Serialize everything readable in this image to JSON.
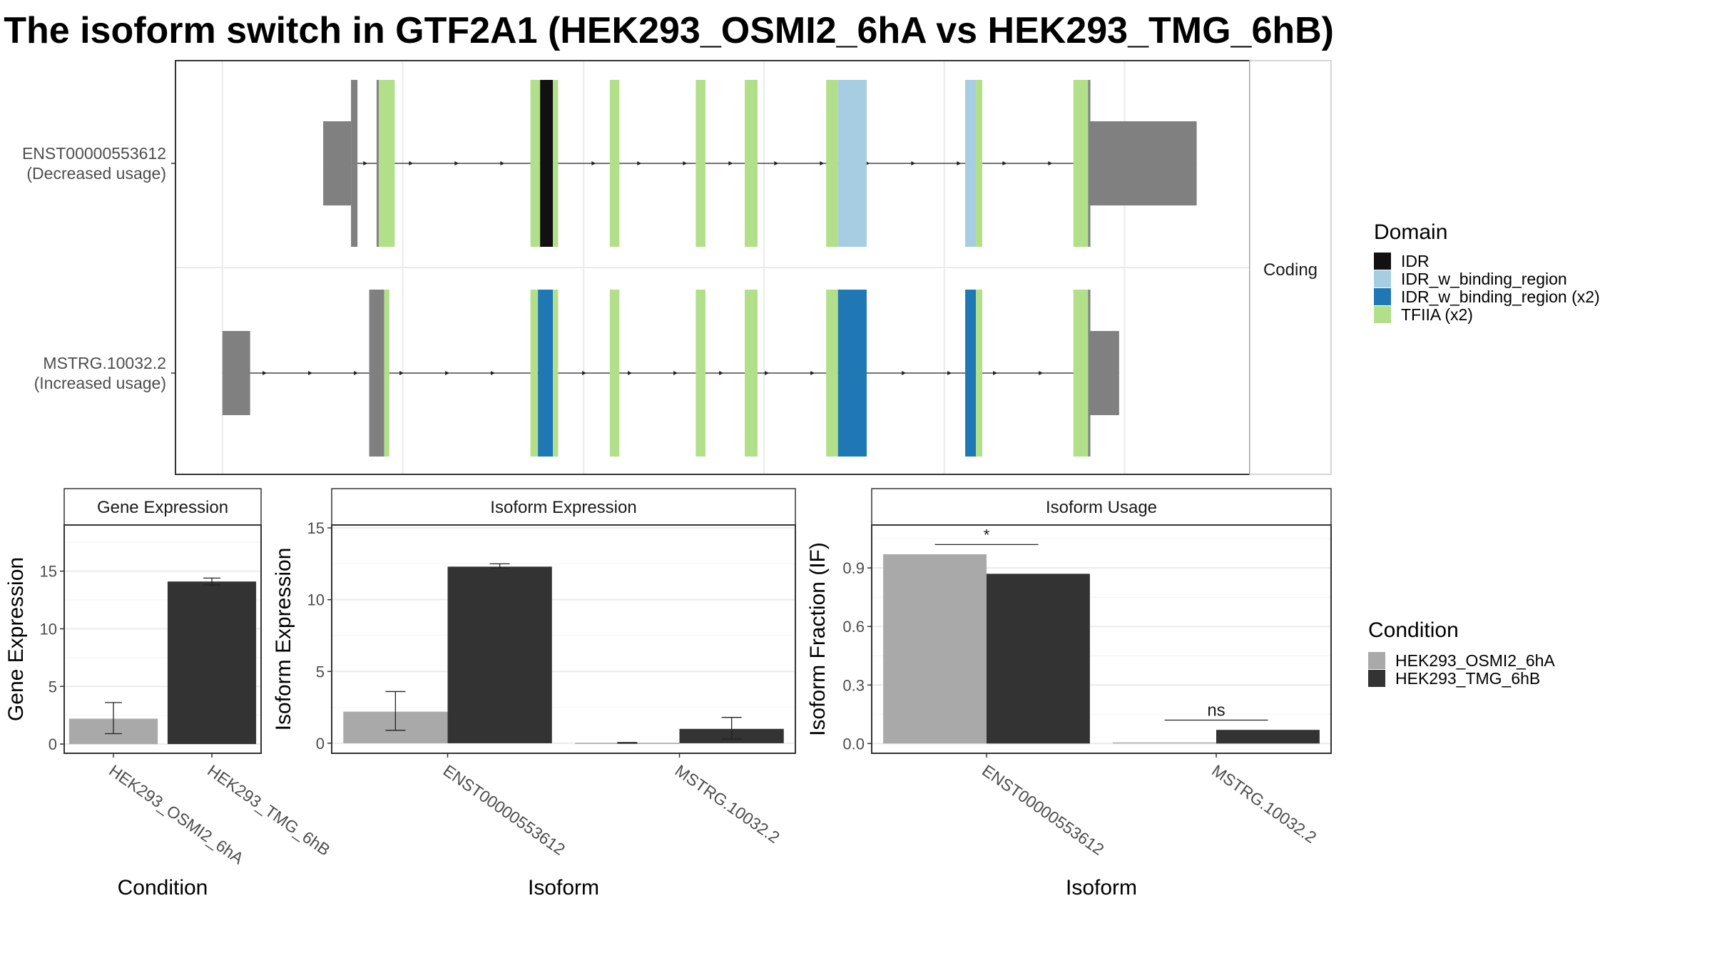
{
  "title": "The isoform switch in GTF2A1 (HEK293_OSMI2_6hA vs HEK293_TMG_6hB)",
  "colors": {
    "IDR": "#111111",
    "IDR_w_binding_region": "#a6cde2",
    "IDR_w_binding_region_x2": "#1f78b4",
    "TFIIA_x2": "#b2df8a",
    "utr": "#808080",
    "cond_a": "#a9a9a9",
    "cond_b": "#333333"
  },
  "chart_data": [
    {
      "type": "gene_structure",
      "facet_label": "Coding",
      "isoforms": [
        {
          "id": "ENST00000553612",
          "label_line1": "ENST00000553612",
          "label_line2": "(Decreased usage)",
          "utr5": [
            [
              0.1375,
              0.1634
            ],
            [
              0.1634,
              0.1694
            ]
          ],
          "utr3": [
            [
              0.8516,
              0.9506
            ]
          ],
          "segments": [
            {
              "start": 0.1872,
              "end": 0.1892,
              "domain": "utr"
            },
            {
              "start": 0.1892,
              "end": 0.2041,
              "domain": "TFIIA_x2"
            },
            {
              "start": 0.3304,
              "end": 0.3394,
              "domain": "TFIIA_x2"
            },
            {
              "start": 0.3394,
              "end": 0.3513,
              "domain": "IDR"
            },
            {
              "start": 0.3513,
              "end": 0.3562,
              "domain": "TFIIA_x2"
            },
            {
              "start": 0.4043,
              "end": 0.4132,
              "domain": "TFIIA_x2"
            },
            {
              "start": 0.4843,
              "end": 0.4933,
              "domain": "TFIIA_x2"
            },
            {
              "start": 0.5299,
              "end": 0.5418,
              "domain": "TFIIA_x2"
            },
            {
              "start": 0.6057,
              "end": 0.6167,
              "domain": "TFIIA_x2"
            },
            {
              "start": 0.6167,
              "end": 0.6434,
              "domain": "IDR_w_binding_region"
            },
            {
              "start": 0.7351,
              "end": 0.7451,
              "domain": "IDR_w_binding_region"
            },
            {
              "start": 0.7451,
              "end": 0.751,
              "domain": "TFIIA_x2"
            },
            {
              "start": 0.8358,
              "end": 0.8496,
              "domain": "TFIIA_x2"
            },
            {
              "start": 0.8496,
              "end": 0.8516,
              "domain": "utr"
            }
          ]
        },
        {
          "id": "MSTRG.10032.2",
          "label_line1": "MSTRG.10032.2",
          "label_line2": "(Increased usage)",
          "utr5": [
            [
              0.0437,
              0.0695
            ],
            [
              0.1803,
              0.1922
            ],
            [
              0.1922,
              0.1942
            ]
          ],
          "utr3": [
            [
              0.8516,
              0.8784
            ]
          ],
          "segments": [
            {
              "start": 0.1942,
              "end": 0.1991,
              "domain": "TFIIA_x2"
            },
            {
              "start": 0.3304,
              "end": 0.3374,
              "domain": "TFIIA_x2"
            },
            {
              "start": 0.3374,
              "end": 0.3513,
              "domain": "IDR_w_binding_region_x2"
            },
            {
              "start": 0.3513,
              "end": 0.3562,
              "domain": "TFIIA_x2"
            },
            {
              "start": 0.4043,
              "end": 0.4132,
              "domain": "TFIIA_x2"
            },
            {
              "start": 0.4843,
              "end": 0.4933,
              "domain": "TFIIA_x2"
            },
            {
              "start": 0.5299,
              "end": 0.5418,
              "domain": "TFIIA_x2"
            },
            {
              "start": 0.6057,
              "end": 0.6167,
              "domain": "TFIIA_x2"
            },
            {
              "start": 0.6167,
              "end": 0.6434,
              "domain": "IDR_w_binding_region_x2"
            },
            {
              "start": 0.7351,
              "end": 0.7451,
              "domain": "IDR_w_binding_region_x2"
            },
            {
              "start": 0.7451,
              "end": 0.751,
              "domain": "TFIIA_x2"
            },
            {
              "start": 0.8358,
              "end": 0.8496,
              "domain": "TFIIA_x2"
            },
            {
              "start": 0.8496,
              "end": 0.8516,
              "domain": "utr"
            }
          ]
        }
      ]
    },
    {
      "type": "bar",
      "facet_label": "Gene Expression",
      "xlabel": "Condition",
      "ylabel": "Gene Expression",
      "ylim": [
        -0.8,
        19
      ],
      "yticks": [
        0,
        5,
        10,
        15
      ],
      "categories": [
        "HEK293_OSMI2_6hA",
        "HEK293_TMG_6hB"
      ],
      "values": [
        2.2,
        14.1
      ],
      "errors": [
        [
          0.9,
          3.6
        ],
        [
          13.8,
          14.4
        ]
      ]
    },
    {
      "type": "bar",
      "facet_label": "Isoform Expression",
      "xlabel": "Isoform",
      "ylabel": "Isoform Expression",
      "ylim": [
        -0.7,
        15.2
      ],
      "yticks": [
        0,
        5,
        10,
        15
      ],
      "categories": [
        "ENST00000553612",
        "MSTRG.10032.2"
      ],
      "series": [
        {
          "name": "HEK293_OSMI2_6hA",
          "values": [
            2.2,
            0.02
          ],
          "errors": [
            [
              0.9,
              3.6
            ],
            [
              0,
              0.05
            ]
          ]
        },
        {
          "name": "HEK293_TMG_6hB",
          "values": [
            12.3,
            1.0
          ],
          "errors": [
            [
              12.2,
              12.5
            ],
            [
              0.3,
              1.8
            ]
          ]
        }
      ]
    },
    {
      "type": "bar",
      "facet_label": "Isoform Usage",
      "xlabel": "Isoform",
      "ylabel": "Isoform Fraction (IF)",
      "ylim": [
        -0.05,
        1.12
      ],
      "yticks": [
        0.0,
        0.3,
        0.6,
        0.9
      ],
      "ytick_labels": [
        "0.0",
        "0.3",
        "0.6",
        "0.9"
      ],
      "categories": [
        "ENST00000553612",
        "MSTRG.10032.2"
      ],
      "series": [
        {
          "name": "HEK293_OSMI2_6hA",
          "values": [
            0.97,
            0.003
          ]
        },
        {
          "name": "HEK293_TMG_6hB",
          "values": [
            0.87,
            0.07
          ]
        }
      ],
      "significance": [
        {
          "label": "*",
          "y": 1.02
        },
        {
          "label": "ns",
          "y": 0.12
        }
      ]
    }
  ],
  "legends": {
    "domain": {
      "title": "Domain",
      "items": [
        {
          "key": "IDR",
          "label": "IDR"
        },
        {
          "key": "IDR_w_binding_region",
          "label": "IDR_w_binding_region"
        },
        {
          "key": "IDR_w_binding_region_x2",
          "label": "IDR_w_binding_region (x2)"
        },
        {
          "key": "TFIIA_x2",
          "label": "TFIIA (x2)"
        }
      ]
    },
    "condition": {
      "title": "Condition",
      "items": [
        {
          "key": "cond_a",
          "label": "HEK293_OSMI2_6hA"
        },
        {
          "key": "cond_b",
          "label": "HEK293_TMG_6hB"
        }
      ]
    }
  }
}
